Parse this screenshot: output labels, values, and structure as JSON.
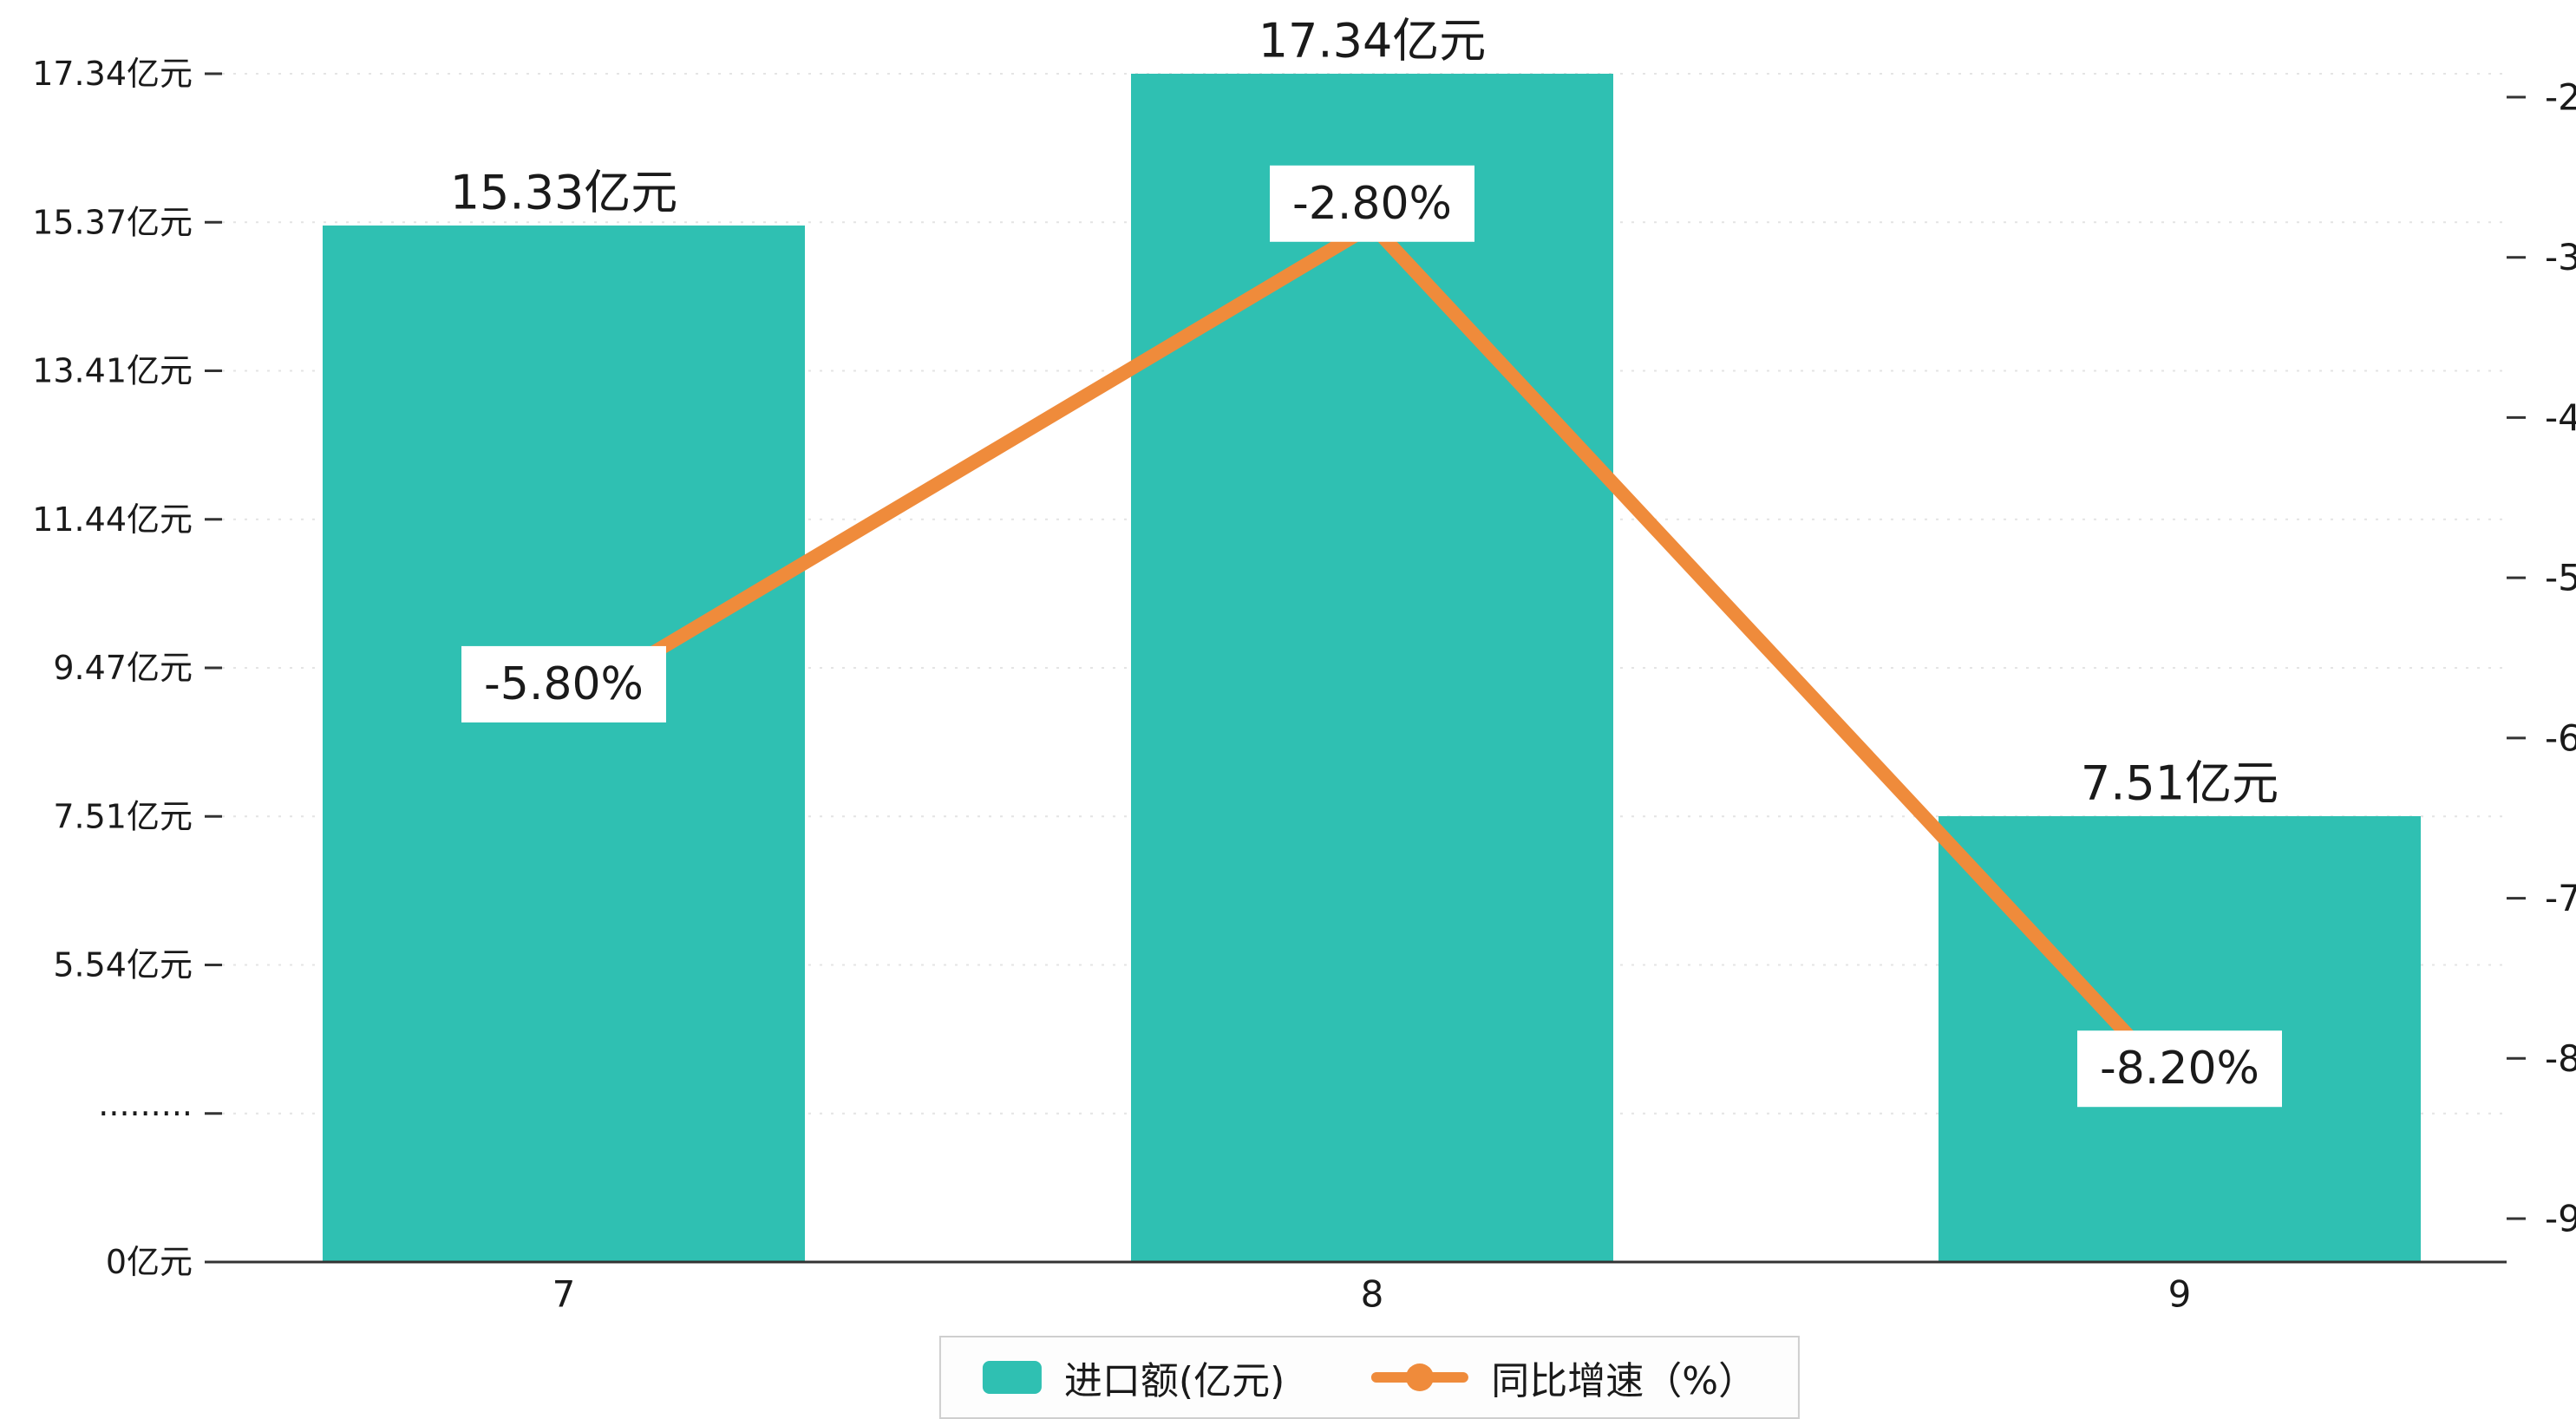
{
  "chart_data": {
    "type": "bar",
    "combo": "bar+line",
    "categories": [
      "7",
      "8",
      "9"
    ],
    "series": [
      {
        "name": "进口额(亿元)",
        "kind": "bar",
        "axis": "left",
        "values": [
          15.33,
          17.34,
          7.51
        ],
        "value_labels": [
          "15.33亿元",
          "17.34亿元",
          "7.51亿元"
        ],
        "color": "#2fc0b2"
      },
      {
        "name": "同比增速（%）",
        "kind": "line",
        "axis": "right",
        "values": [
          -5.8,
          -2.8,
          -8.2
        ],
        "value_labels": [
          "-5.80%",
          "-2.80%",
          "-8.20%"
        ],
        "color": "#ef8b3b"
      }
    ],
    "left_axis": {
      "unit": "亿元",
      "ticks": [
        {
          "value": 17.34,
          "label": "17.34亿元"
        },
        {
          "value": 15.37,
          "label": "15.37亿元"
        },
        {
          "value": 13.41,
          "label": "13.41亿元"
        },
        {
          "value": 11.44,
          "label": "11.44亿元"
        },
        {
          "value": 9.47,
          "label": "9.47亿元"
        },
        {
          "value": 7.51,
          "label": "7.51亿元"
        },
        {
          "value": 5.54,
          "label": "5.54亿元"
        },
        {
          "value": 3.57,
          "label": "·········",
          "axis_break": true
        },
        {
          "value": 0,
          "label": "0亿元"
        }
      ]
    },
    "right_axis": {
      "max": -2,
      "min": -9,
      "tick_labels": [
        "-2",
        "-3",
        "-4",
        "-5",
        "-6",
        "-7",
        "-8",
        "-9"
      ]
    },
    "legend": [
      {
        "label": "进口额(亿元)",
        "marker": "square"
      },
      {
        "label": "同比增速（%）",
        "marker": "line-dot"
      }
    ],
    "grid": {
      "horizontal_dashed": true
    },
    "background": "#ffffff",
    "legend_position": "bottom-center"
  }
}
